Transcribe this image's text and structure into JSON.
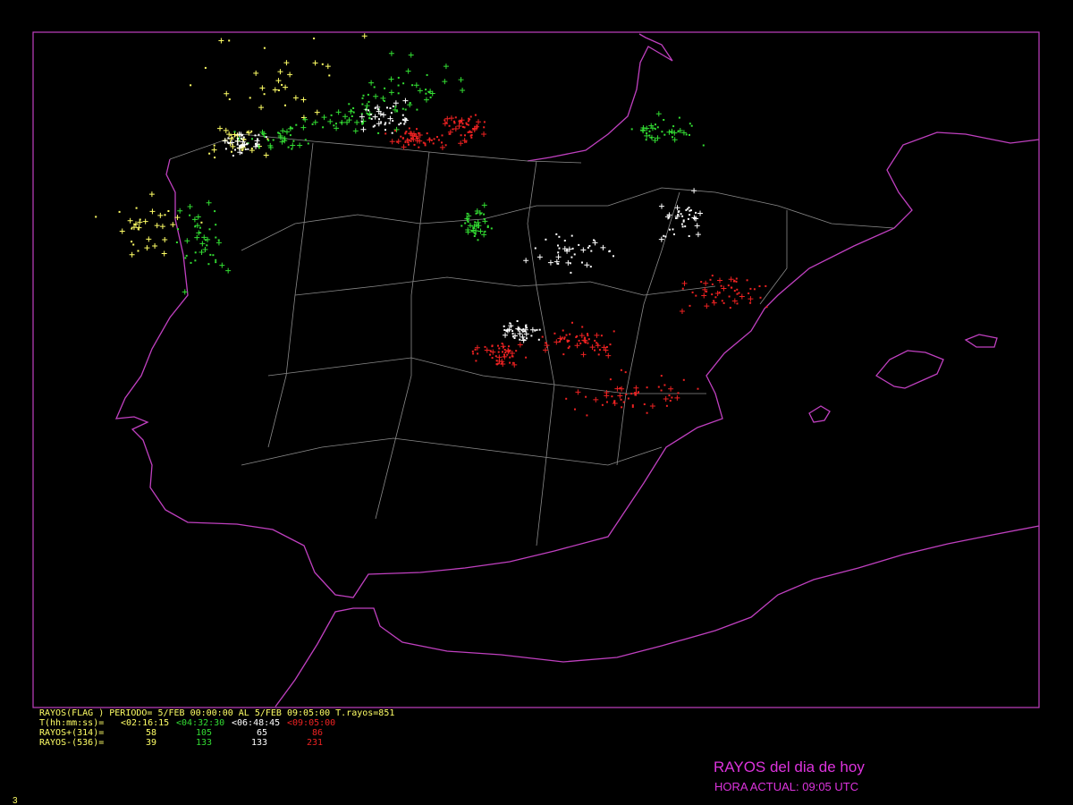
{
  "title": "RAYOS del dia de hoy",
  "subtitle": "HORA ACTUAL: 09:05 UTC",
  "page_number": "3",
  "legend": {
    "header": "RAYOS(FLAG ) PERIODO= 5/FEB 00:00:00 AL  5/FEB 09:05:00  T.rayos=851",
    "time_label": "T(hh:mm:ss)=",
    "positive_label": "RAYOS+(314)=",
    "negative_label": "RAYOS-(536)=",
    "periods": [
      {
        "label": "<02:16:15",
        "color": "#ffff66",
        "positive": 58,
        "negative": 39
      },
      {
        "label": "<04:32:30",
        "color": "#33dd33",
        "positive": 105,
        "negative": 133
      },
      {
        "label": "<06:48:45",
        "color": "#ffffff",
        "positive": 65,
        "negative": 133
      },
      {
        "label": "<09:05:00",
        "color": "#ee2222",
        "positive": 86,
        "negative": 231
      }
    ]
  }
}
